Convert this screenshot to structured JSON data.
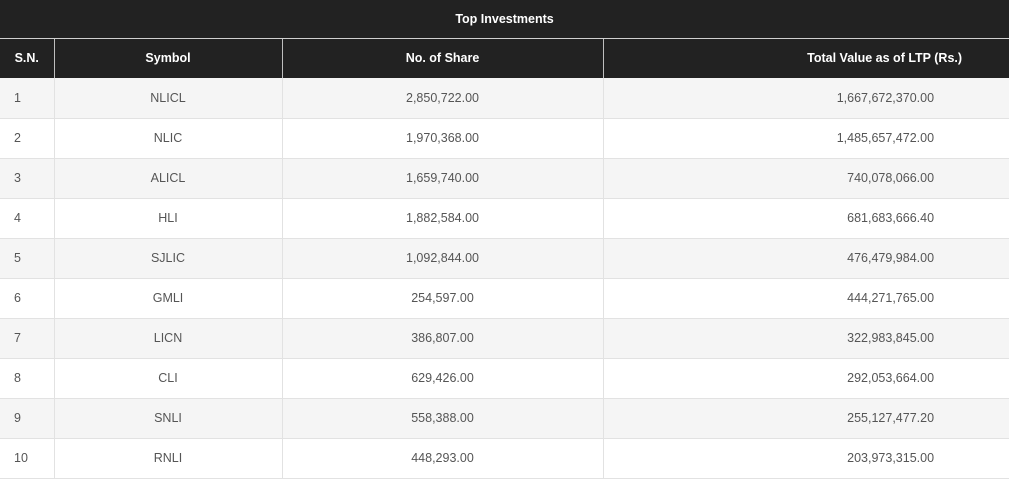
{
  "table": {
    "title": "Top Investments",
    "headers": {
      "sn": "S.N.",
      "symbol": "Symbol",
      "shares": "No. of Share",
      "total": "Total Value as of LTP (Rs.)"
    },
    "rows": [
      {
        "sn": "1",
        "symbol": "NLICL",
        "shares": "2,850,722.00",
        "total": "1,667,672,370.00"
      },
      {
        "sn": "2",
        "symbol": "NLIC",
        "shares": "1,970,368.00",
        "total": "1,485,657,472.00"
      },
      {
        "sn": "3",
        "symbol": "ALICL",
        "shares": "1,659,740.00",
        "total": "740,078,066.00"
      },
      {
        "sn": "4",
        "symbol": "HLI",
        "shares": "1,882,584.00",
        "total": "681,683,666.40"
      },
      {
        "sn": "5",
        "symbol": "SJLIC",
        "shares": "1,092,844.00",
        "total": "476,479,984.00"
      },
      {
        "sn": "6",
        "symbol": "GMLI",
        "shares": "254,597.00",
        "total": "444,271,765.00"
      },
      {
        "sn": "7",
        "symbol": "LICN",
        "shares": "386,807.00",
        "total": "322,983,845.00"
      },
      {
        "sn": "8",
        "symbol": "CLI",
        "shares": "629,426.00",
        "total": "292,053,664.00"
      },
      {
        "sn": "9",
        "symbol": "SNLI",
        "shares": "558,388.00",
        "total": "255,127,477.20"
      },
      {
        "sn": "10",
        "symbol": "RNLI",
        "shares": "448,293.00",
        "total": "203,973,315.00"
      }
    ]
  },
  "colors": {
    "header_bg": "#222222",
    "header_text": "#ffffff",
    "row_stripe": "#f5f5f5",
    "cell_text": "#555555"
  }
}
